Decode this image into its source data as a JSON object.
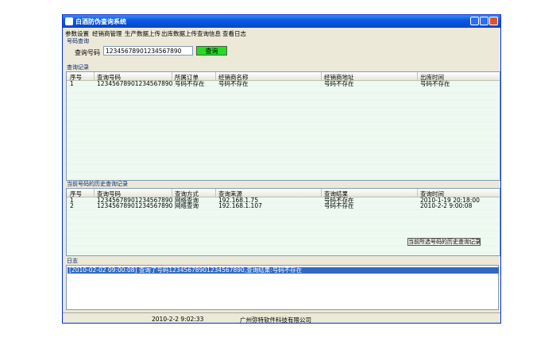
{
  "window": {
    "title": "白酒防伪查询系统"
  },
  "menu": [
    "参数设置",
    "经销商管理",
    "生产数据上传",
    "出库数据上传",
    "查询信息",
    "查看日志"
  ],
  "query": {
    "section": "号码查询",
    "label": "查询号码",
    "input": "12345678901234567890",
    "button": "查询"
  },
  "records": {
    "section": "查询记录",
    "headers": [
      "序号",
      "查询号码",
      "所属订单",
      "经销商名称",
      "经销商地址",
      "出库时间"
    ],
    "rows": [
      [
        "1",
        "12345678901234567890",
        "号码不存在",
        "号码不存在",
        "号码不存在",
        "号码不存在"
      ]
    ]
  },
  "history": {
    "section": "当前号码的历史查询记录",
    "headers": [
      "序号",
      "查询号码",
      "查询方式",
      "查询来源",
      "查询结果",
      "查询时间"
    ],
    "rows": [
      [
        "1",
        "12345678901234567890",
        "网络查询",
        "192.168.1.75",
        "号码不存在",
        "2010-1-19 20:18:00"
      ],
      [
        "2",
        "12345678901234567890",
        "网络查询",
        "192.168.1.107",
        "号码不存在",
        "2010-2-2 9:00:08"
      ]
    ],
    "button": "当前所选号码的历史查询记录"
  },
  "log": {
    "section": "日志",
    "entries": [
      "[2010-02-02 09:00:08] 查询了号码12345678901234567890,查询结果:号码不存在"
    ]
  },
  "status": [
    "2010-2-2 9:02:33",
    "广州弥特软件科技有限公司"
  ]
}
